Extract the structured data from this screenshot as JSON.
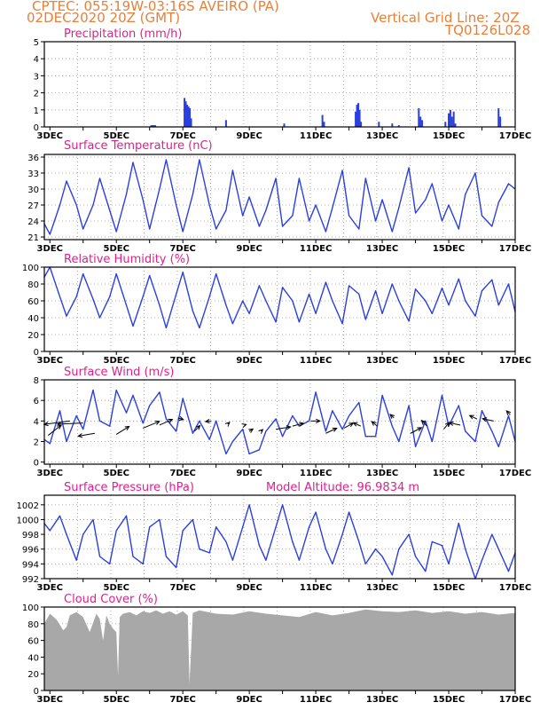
{
  "header": {
    "line1": "CPTEC:   055:19W-03:16S   AVEIRO (PA)",
    "line2": "02DEC2020 20Z (GMT)",
    "grid_note": "Vertical Grid Line: 20Z",
    "model_id": "TQ0126L028"
  },
  "colors": {
    "header": "#e8803a",
    "title": "#e0208a",
    "line": "#2b3fe0",
    "cloud": "#a8a8a8",
    "arrow": "#000000"
  },
  "chart_data": [
    {
      "id": "precip",
      "type": "bar",
      "title": "Precipitation (mm/h)",
      "x_unit": "day of December 2020 (fractional)",
      "ylim": [
        0,
        5
      ],
      "yticks": [
        0,
        1,
        2,
        3,
        4,
        5
      ],
      "xlim": [
        2.833,
        17.0
      ],
      "xtick_labels": [
        "3DEC",
        "5DEC",
        "7DEC",
        "9DEC",
        "11DEC",
        "13DEC",
        "15DEC",
        "17DEC"
      ],
      "grid": true,
      "x": [
        6.05,
        6.09,
        6.13,
        6.17,
        7.05,
        7.09,
        7.13,
        7.17,
        7.21,
        7.25,
        8.3,
        10.05,
        11.2,
        11.25,
        12.2,
        12.24,
        12.28,
        12.32,
        12.36,
        12.9,
        13.3,
        13.5,
        14.1,
        14.15,
        14.2,
        14.9,
        15.0,
        15.05,
        15.1,
        15.15,
        15.2,
        16.5,
        16.55
      ],
      "values": [
        0.1,
        0.1,
        0.1,
        0.1,
        1.7,
        1.5,
        1.3,
        1.2,
        1.1,
        0.5,
        0.4,
        0.2,
        0.7,
        0.3,
        0.9,
        1.3,
        1.4,
        1.0,
        0.3,
        0.3,
        0.2,
        0.1,
        1.1,
        0.6,
        0.4,
        0.3,
        0.8,
        1.0,
        0.6,
        0.9,
        0.2,
        1.1,
        0.6
      ]
    },
    {
      "id": "temp",
      "type": "line",
      "title": "Surface Temperature (nC)",
      "ylim": [
        20.5,
        36.5
      ],
      "yticks": [
        21,
        24,
        27,
        30,
        33,
        36
      ],
      "xlim": [
        2.833,
        17.0
      ],
      "xtick_labels": [
        "3DEC",
        "5DEC",
        "7DEC",
        "9DEC",
        "11DEC",
        "13DEC",
        "15DEC",
        "17DEC"
      ],
      "grid": true,
      "x": [
        2.83,
        3.0,
        3.3,
        3.5,
        3.8,
        4.0,
        4.3,
        4.5,
        4.8,
        5.0,
        5.3,
        5.5,
        5.8,
        6.0,
        6.3,
        6.5,
        6.8,
        7.0,
        7.3,
        7.5,
        7.8,
        8.0,
        8.3,
        8.5,
        8.8,
        9.0,
        9.3,
        9.5,
        9.8,
        10.0,
        10.3,
        10.5,
        10.8,
        11.0,
        11.3,
        11.5,
        11.8,
        12.0,
        12.3,
        12.5,
        12.8,
        13.0,
        13.3,
        13.5,
        13.8,
        14.0,
        14.3,
        14.5,
        14.8,
        15.0,
        15.3,
        15.5,
        15.8,
        16.0,
        16.3,
        16.5,
        16.8,
        17.0
      ],
      "values": [
        23.5,
        21.5,
        27,
        31.5,
        27,
        22.5,
        27,
        32,
        26,
        22,
        29,
        35,
        28,
        22.5,
        30,
        35.5,
        27,
        22,
        29,
        35.5,
        27,
        22.5,
        26,
        33.5,
        25,
        28.5,
        23,
        26,
        32,
        23,
        25,
        32,
        24,
        27,
        22,
        26.5,
        33.5,
        25,
        22.5,
        32,
        24,
        28,
        22,
        26.5,
        34,
        25.5,
        28,
        31,
        24,
        27,
        22.5,
        29,
        33,
        25,
        23,
        27.5,
        31,
        30
      ]
    },
    {
      "id": "rh",
      "type": "line",
      "title": "Relative Humidity (%)",
      "ylim": [
        0,
        100
      ],
      "yticks": [
        0,
        20,
        40,
        60,
        80,
        100
      ],
      "xlim": [
        2.833,
        17.0
      ],
      "xtick_labels": [
        "3DEC",
        "5DEC",
        "7DEC",
        "9DEC",
        "11DEC",
        "13DEC",
        "15DEC",
        "17DEC"
      ],
      "grid": true,
      "x": [
        2.83,
        3.0,
        3.3,
        3.5,
        3.8,
        4.0,
        4.3,
        4.5,
        4.8,
        5.0,
        5.3,
        5.5,
        5.8,
        6.0,
        6.3,
        6.5,
        6.8,
        7.0,
        7.3,
        7.5,
        7.8,
        8.0,
        8.3,
        8.5,
        8.8,
        9.0,
        9.3,
        9.5,
        9.8,
        10.0,
        10.3,
        10.5,
        10.8,
        11.0,
        11.3,
        11.5,
        11.8,
        12.0,
        12.3,
        12.5,
        12.8,
        13.0,
        13.3,
        13.5,
        13.8,
        14.0,
        14.3,
        14.5,
        14.8,
        15.0,
        15.3,
        15.5,
        15.8,
        16.0,
        16.3,
        16.5,
        16.8,
        17.0
      ],
      "values": [
        88,
        100,
        65,
        42,
        65,
        92,
        62,
        40,
        65,
        92,
        55,
        30,
        65,
        90,
        55,
        28,
        68,
        94,
        48,
        28,
        65,
        92,
        55,
        33,
        60,
        45,
        78,
        60,
        35,
        76,
        60,
        35,
        68,
        45,
        82,
        60,
        33,
        78,
        68,
        38,
        72,
        45,
        80,
        60,
        36,
        74,
        60,
        45,
        75,
        55,
        86,
        60,
        42,
        72,
        85,
        55,
        80,
        47
      ]
    },
    {
      "id": "wind",
      "type": "line",
      "title": "Surface Wind (m/s)",
      "ylim": [
        -0.2,
        8
      ],
      "yticks": [
        0,
        2,
        4,
        6,
        8
      ],
      "xlim": [
        2.833,
        17.0
      ],
      "xtick_labels": [
        "3DEC",
        "5DEC",
        "7DEC",
        "9DEC",
        "11DEC",
        "13DEC",
        "15DEC",
        "17DEC"
      ],
      "grid": true,
      "x": [
        2.83,
        3.0,
        3.3,
        3.5,
        3.8,
        4.0,
        4.3,
        4.5,
        4.8,
        5.0,
        5.3,
        5.5,
        5.8,
        6.0,
        6.3,
        6.5,
        6.8,
        7.0,
        7.3,
        7.5,
        7.8,
        8.0,
        8.3,
        8.5,
        8.8,
        9.0,
        9.3,
        9.5,
        9.8,
        10.0,
        10.3,
        10.5,
        10.8,
        11.0,
        11.3,
        11.5,
        11.8,
        12.0,
        12.3,
        12.5,
        12.8,
        13.0,
        13.3,
        13.5,
        13.8,
        14.0,
        14.3,
        14.5,
        14.8,
        15.0,
        15.3,
        15.5,
        15.8,
        16.0,
        16.3,
        16.5,
        16.8,
        17.0
      ],
      "values": [
        2.2,
        1.8,
        5.0,
        2.0,
        4.5,
        3.2,
        7.0,
        4.0,
        3.5,
        7.0,
        4.8,
        6.5,
        3.8,
        5.5,
        6.8,
        4.2,
        3.0,
        6.2,
        2.8,
        4.0,
        2.2,
        4.0,
        0.8,
        2.0,
        3.2,
        0.8,
        1.2,
        3.0,
        4.2,
        2.5,
        4.5,
        3.5,
        4.0,
        6.8,
        3.0,
        5.0,
        3.2,
        4.5,
        5.8,
        2.5,
        2.5,
        6.5,
        3.5,
        2.0,
        5.5,
        1.5,
        4.0,
        2.0,
        6.5,
        3.5,
        5.5,
        3.0,
        2.0,
        5.0,
        3.0,
        1.5,
        4.5,
        2.0
      ],
      "vector_label": "wind direction arrows",
      "arrows": [
        {
          "x": 2.95,
          "y": 2.6,
          "dx": 0.7,
          "dy": 1.8
        },
        {
          "x": 3.6,
          "y": 4.0,
          "dx": -1.4,
          "dy": -0.6
        },
        {
          "x": 4.0,
          "y": 3.8,
          "dx": -1.4,
          "dy": -0.2
        },
        {
          "x": 4.35,
          "y": 2.8,
          "dx": -0.9,
          "dy": -0.5
        },
        {
          "x": 5.0,
          "y": 2.7,
          "dx": 0.7,
          "dy": 1.4
        },
        {
          "x": 5.8,
          "y": 3.3,
          "dx": 0.9,
          "dy": 1.2
        },
        {
          "x": 6.3,
          "y": 3.6,
          "dx": 0.7,
          "dy": 1.0
        },
        {
          "x": 6.85,
          "y": 4.3,
          "dx": 0.3,
          "dy": -0.3
        },
        {
          "x": 7.35,
          "y": 3.0,
          "dx": 0.3,
          "dy": 1.0
        },
        {
          "x": 7.85,
          "y": 4.0,
          "dx": -0.3,
          "dy": -0.1
        },
        {
          "x": 8.35,
          "y": 3.7,
          "dx": 0.1,
          "dy": 0.3
        },
        {
          "x": 8.85,
          "y": 3.6,
          "dx": 0.1,
          "dy": 0.1
        },
        {
          "x": 9.0,
          "y": 3.0,
          "dx": 0.2,
          "dy": 0.4
        },
        {
          "x": 9.35,
          "y": 3.0,
          "dx": 0.1,
          "dy": 0.3
        },
        {
          "x": 9.8,
          "y": 3.2,
          "dx": 0.8,
          "dy": 0.4
        },
        {
          "x": 10.3,
          "y": 3.5,
          "dx": 0.6,
          "dy": 0.5
        },
        {
          "x": 10.85,
          "y": 4.0,
          "dx": 0.5,
          "dy": 0.0
        },
        {
          "x": 11.3,
          "y": 2.8,
          "dx": 0.6,
          "dy": 0.9
        },
        {
          "x": 11.85,
          "y": 3.3,
          "dx": 0.5,
          "dy": 0.9
        },
        {
          "x": 12.35,
          "y": 3.5,
          "dx": -0.4,
          "dy": 0.6
        },
        {
          "x": 12.85,
          "y": 3.5,
          "dx": -0.3,
          "dy": 0.8
        },
        {
          "x": 13.35,
          "y": 4.3,
          "dx": -0.2,
          "dy": 0.6
        },
        {
          "x": 13.85,
          "y": 2.8,
          "dx": 0.6,
          "dy": 1.0
        },
        {
          "x": 14.35,
          "y": 3.5,
          "dx": -0.3,
          "dy": 1.0
        },
        {
          "x": 14.85,
          "y": 3.2,
          "dx": 0.3,
          "dy": 1.2
        },
        {
          "x": 15.35,
          "y": 3.6,
          "dx": -0.6,
          "dy": 0.4
        },
        {
          "x": 15.85,
          "y": 4.2,
          "dx": -0.4,
          "dy": 0.6
        },
        {
          "x": 16.35,
          "y": 4.0,
          "dx": -0.6,
          "dy": 0.4
        },
        {
          "x": 16.85,
          "y": 4.6,
          "dx": -0.2,
          "dy": 0.7
        }
      ]
    },
    {
      "id": "pressure",
      "type": "line",
      "title": "Surface Pressure (hPa)",
      "annotation": "Model Altitude: 96.9834 m",
      "ylim": [
        992,
        1003.3
      ],
      "yticks": [
        992,
        994,
        996,
        998,
        1000,
        1002
      ],
      "xlim": [
        2.833,
        17.0
      ],
      "xtick_labels": [
        "3DEC",
        "5DEC",
        "7DEC",
        "9DEC",
        "11DEC",
        "13DEC",
        "15DEC",
        "17DEC"
      ],
      "grid": true,
      "x": [
        2.83,
        3.0,
        3.3,
        3.5,
        3.8,
        4.0,
        4.3,
        4.5,
        4.8,
        5.0,
        5.3,
        5.5,
        5.8,
        6.0,
        6.3,
        6.5,
        6.8,
        7.0,
        7.3,
        7.5,
        7.8,
        8.0,
        8.3,
        8.5,
        8.8,
        9.0,
        9.3,
        9.5,
        9.8,
        10.0,
        10.3,
        10.5,
        10.8,
        11.0,
        11.3,
        11.5,
        11.8,
        12.0,
        12.3,
        12.5,
        12.8,
        13.0,
        13.3,
        13.5,
        13.8,
        14.0,
        14.3,
        14.5,
        14.8,
        15.0,
        15.3,
        15.5,
        15.8,
        16.0,
        16.3,
        16.5,
        16.8,
        17.0
      ],
      "values": [
        999.5,
        998.5,
        1000.5,
        998,
        994.5,
        998,
        1000,
        995,
        994,
        998.5,
        1000.5,
        995,
        994,
        999,
        1000,
        995,
        993.5,
        998.5,
        1000,
        996,
        995.5,
        999,
        997,
        994.5,
        999,
        1002,
        996.5,
        994.5,
        999,
        1002,
        997,
        994.5,
        999,
        1001,
        996,
        994,
        998,
        1001,
        997,
        994,
        996,
        995,
        992.5,
        996,
        998,
        995,
        993,
        997,
        996.5,
        994,
        999.5,
        996,
        992,
        994.5,
        998,
        996,
        993,
        995.5
      ]
    },
    {
      "id": "cloud",
      "type": "area",
      "title": "Cloud Cover (%)",
      "ylim": [
        0,
        100
      ],
      "yticks": [
        0,
        20,
        40,
        60,
        80,
        100
      ],
      "xlim": [
        2.833,
        17.0
      ],
      "xtick_labels": [
        "3DEC",
        "5DEC",
        "7DEC",
        "9DEC",
        "11DEC",
        "13DEC",
        "15DEC",
        "17DEC"
      ],
      "grid": true,
      "x": [
        2.83,
        3.0,
        3.2,
        3.4,
        3.5,
        3.6,
        3.8,
        4.0,
        4.2,
        4.4,
        4.5,
        4.6,
        4.7,
        4.8,
        4.9,
        5.0,
        5.05,
        5.1,
        5.2,
        5.4,
        5.6,
        5.8,
        6.0,
        6.2,
        6.4,
        6.6,
        6.8,
        7.0,
        7.15,
        7.2,
        7.3,
        7.5,
        8.0,
        8.5,
        9.0,
        9.5,
        10.0,
        10.5,
        11.0,
        11.5,
        12.0,
        12.5,
        13.0,
        13.5,
        14.0,
        14.5,
        15.0,
        15.5,
        16.0,
        16.5,
        17.0
      ],
      "values": [
        80,
        92,
        85,
        72,
        76,
        90,
        94,
        88,
        70,
        92,
        86,
        60,
        90,
        80,
        74,
        70,
        18,
        88,
        92,
        94,
        90,
        95,
        93,
        96,
        92,
        95,
        91,
        95,
        90,
        8,
        93,
        96,
        92,
        91,
        95,
        92,
        90,
        88,
        94,
        90,
        93,
        97,
        95,
        94,
        96,
        93,
        95,
        92,
        94,
        91,
        93
      ]
    }
  ]
}
